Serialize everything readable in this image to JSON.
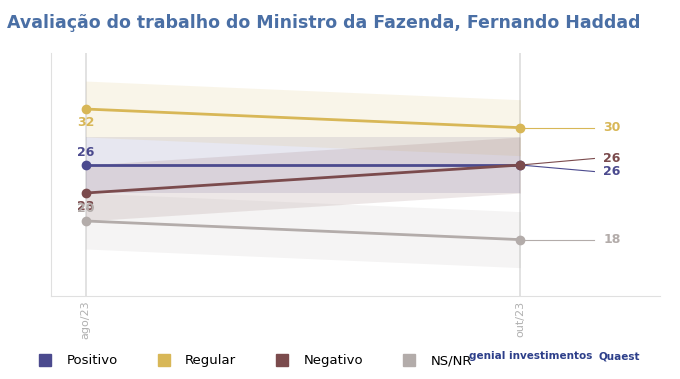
{
  "chart_data": {
    "type": "line",
    "title": "Avaliação do trabalho do Ministro da Fazenda, Fernando Haddad",
    "categories": [
      "ago/23",
      "out/23"
    ],
    "series": [
      {
        "name": "Positivo",
        "color": "#4b4a8e",
        "values": [
          26,
          26
        ],
        "errors": [
          3,
          3
        ],
        "marker": "o"
      },
      {
        "name": "Regular",
        "color": "#d8b757",
        "values": [
          32,
          30
        ],
        "errors": [
          3,
          3
        ],
        "marker": "o"
      },
      {
        "name": "Negativo",
        "color": "#7b4b4d",
        "values": [
          23,
          26
        ],
        "errors": [
          3,
          3
        ],
        "marker": "o"
      },
      {
        "name": "NS/NR",
        "color": "#b3acaa",
        "values": [
          20,
          18
        ],
        "errors": [
          3,
          3
        ],
        "marker": "o"
      }
    ],
    "ylim": [
      12,
      38
    ],
    "tick_labels": "x",
    "data_labels": true,
    "grid": true,
    "legend": "lower left",
    "annotations": [
      "genial investimentos",
      "Quaest"
    ]
  }
}
